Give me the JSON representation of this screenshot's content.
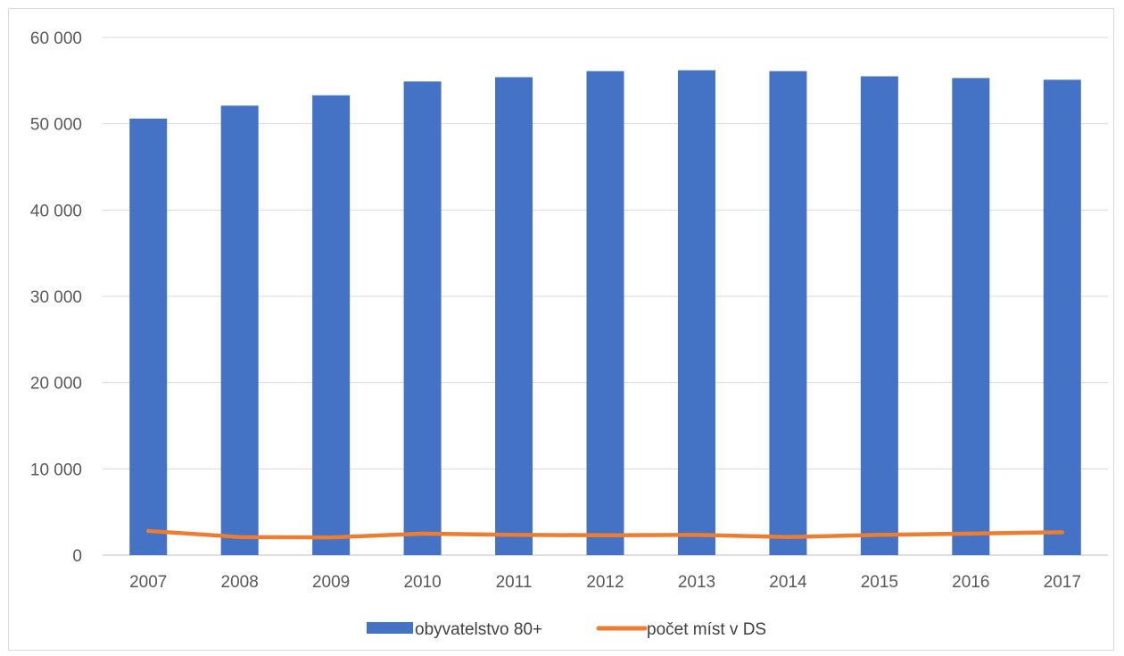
{
  "chart_data": {
    "type": "bar",
    "categories": [
      "2007",
      "2008",
      "2009",
      "2010",
      "2011",
      "2012",
      "2013",
      "2014",
      "2015",
      "2016",
      "2017"
    ],
    "series": [
      {
        "name": "obyvatelstvo 80+",
        "type": "bar",
        "color": "#4472c4",
        "values": [
          50600,
          52100,
          53300,
          54900,
          55400,
          56100,
          56200,
          56100,
          55500,
          55300,
          55100
        ]
      },
      {
        "name": "počet míst v DS",
        "type": "line",
        "color": "#ed7d31",
        "values": [
          2800,
          2100,
          2050,
          2500,
          2350,
          2300,
          2350,
          2100,
          2350,
          2500,
          2650
        ]
      }
    ],
    "ylim": [
      0,
      60000
    ],
    "yticks": [
      0,
      10000,
      20000,
      30000,
      40000,
      50000,
      60000
    ],
    "ytick_labels": [
      "0",
      "10 000",
      "20 000",
      "30 000",
      "40 000",
      "50 000",
      "60 000"
    ],
    "grid": true,
    "legend_position": "bottom",
    "title": "",
    "xlabel": "",
    "ylabel": ""
  }
}
